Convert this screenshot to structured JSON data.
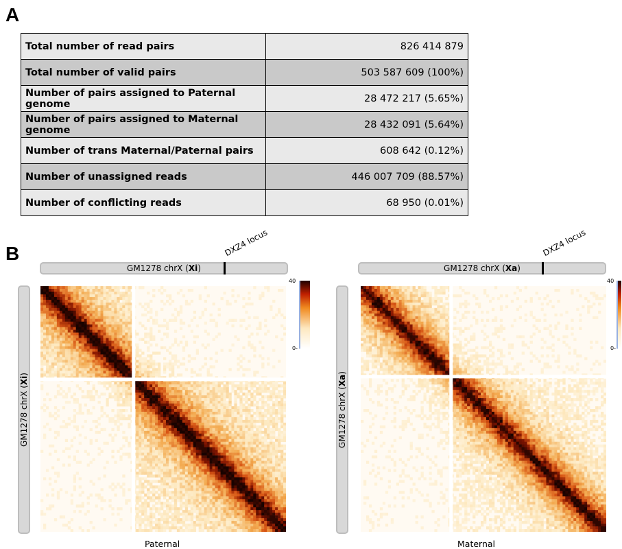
{
  "panels": {
    "a": "A",
    "b": "B"
  },
  "stats_table": [
    {
      "label": "Total number of read pairs",
      "value": "826 414 879"
    },
    {
      "label": "Total number of valid pairs",
      "value": "503 587 609 (100%)"
    },
    {
      "label": "Number of pairs assigned to Paternal genome",
      "value": "28 472 217 (5.65%)"
    },
    {
      "label": "Number of pairs assigned to Maternal genome",
      "value": "28 432 091 (5.64%)"
    },
    {
      "label": "Number of trans Maternal/Paternal pairs",
      "value": "608 642 (0.12%)"
    },
    {
      "label": "Number of unassigned reads",
      "value": "446 007 709 (88.57%)"
    },
    {
      "label": "Number of conflicting reads",
      "value": "68 950 (0.01%)"
    }
  ],
  "maps": [
    {
      "chrom_prefix": "GM1278 chrX (",
      "chrom_bold": "Xi",
      "chrom_suffix": ")",
      "locus_label": "DXZ4 locus",
      "scale_max": "40",
      "scale_min": "0-",
      "bottom_label": "Paternal"
    },
    {
      "chrom_prefix": "GM1278 chrX (",
      "chrom_bold": "Xa",
      "chrom_suffix": ")",
      "locus_label": "DXZ4 locus",
      "scale_max": "40",
      "scale_min": "0-",
      "bottom_label": "Maternal"
    }
  ],
  "colors": {
    "heat_low": "#fff8ec",
    "heat_mid": "#f0a040",
    "heat_high": "#1a0500",
    "table_light": "#e9e9e9",
    "table_dark": "#c9c9c9"
  }
}
